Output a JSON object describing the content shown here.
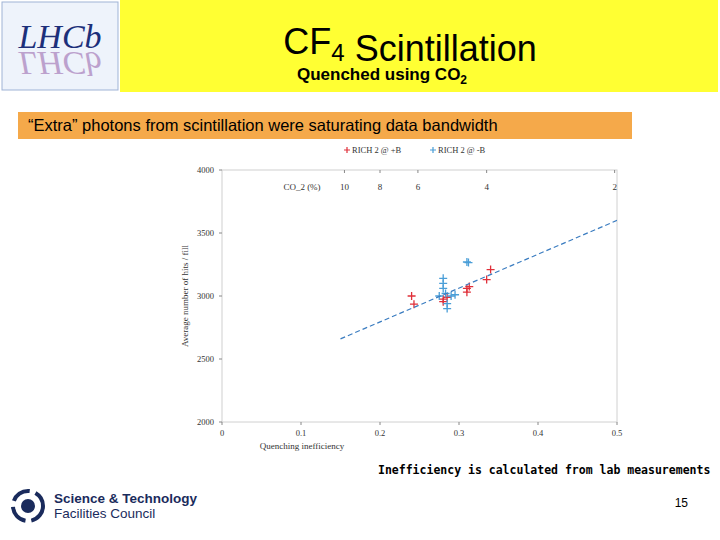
{
  "slide": {
    "title": "CF4 Scintillation",
    "subtitle": "Quenched using CO2",
    "banner": "“Extra” photons from scintillation were saturating data bandwidth",
    "note": "Inefficiency is calculated from lab measurements",
    "page_number": "15",
    "logo_text": "LHCb",
    "footer_logo": [
      "Science & Technology",
      "Facilities Council"
    ]
  },
  "chart_data": {
    "type": "scatter",
    "x_label": "Quenching inefficiency",
    "y_label": "Average number of hits / fill",
    "x2_label": "CO_2 (%)",
    "xlim": [
      0,
      0.5
    ],
    "ylim": [
      2000,
      4000
    ],
    "xticks": [
      0,
      0.1,
      0.2,
      0.3,
      0.4,
      0.5
    ],
    "yticks": [
      2000,
      2500,
      3000,
      3500,
      4000
    ],
    "x2ticks": [
      {
        "value": 0.155,
        "label": "10"
      },
      {
        "value": 0.2,
        "label": "8"
      },
      {
        "value": 0.248,
        "label": "6"
      },
      {
        "value": 0.335,
        "label": "4"
      },
      {
        "value": 0.497,
        "label": "2"
      }
    ],
    "grid": false,
    "legend": "top",
    "series": [
      {
        "name": "RICH 2 @ +B",
        "color": "#e0303a",
        "marker": "plus",
        "x": [
          0.24,
          0.243,
          0.28,
          0.28,
          0.285,
          0.31,
          0.31,
          0.313,
          0.335,
          0.34
        ],
        "values": [
          3000,
          2935,
          2975,
          2955,
          2990,
          3030,
          3060,
          3075,
          3130,
          3210
        ]
      },
      {
        "name": "RICH 2 @ -B",
        "color": "#4a9ed8",
        "marker": "plus",
        "x": [
          0.275,
          0.28,
          0.28,
          0.28,
          0.283,
          0.285,
          0.285,
          0.29,
          0.295,
          0.31,
          0.312
        ],
        "values": [
          3000,
          3140,
          3100,
          3060,
          3020,
          2940,
          2900,
          3000,
          3010,
          3270,
          3265
        ]
      },
      {
        "type": "line",
        "line_style": "dashed",
        "color": "#3a7cc0",
        "x": [
          0.15,
          0.5
        ],
        "values": [
          2660,
          3600
        ]
      }
    ]
  }
}
